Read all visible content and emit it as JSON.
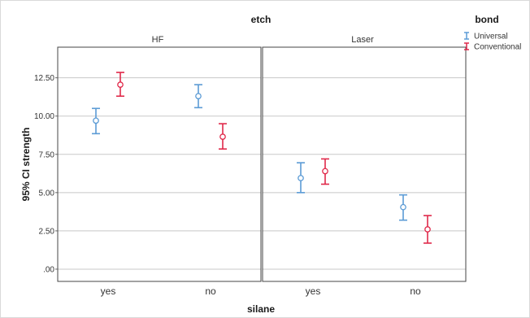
{
  "chart_data": {
    "type": "scatter",
    "subtype": "error-bar",
    "title": "etch",
    "xlabel": "silane",
    "ylabel": "95% CI strength",
    "panels": [
      "HF",
      "Laser"
    ],
    "categories": [
      "yes",
      "no"
    ],
    "ylim": [
      -0.8,
      14.5
    ],
    "yticks": [
      ".00",
      "2.50",
      "5.00",
      "7.50",
      "10.00",
      "12.50"
    ],
    "grid": true,
    "legend": {
      "title": "bond",
      "position": "top-right",
      "entries": [
        "Universal",
        "Conventional"
      ]
    },
    "series": [
      {
        "name": "Universal",
        "color": "#5b9bd5",
        "points": [
          {
            "panel": "HF",
            "x": "yes",
            "mean": 9.7,
            "lower": 8.85,
            "upper": 10.5
          },
          {
            "panel": "HF",
            "x": "no",
            "mean": 11.3,
            "lower": 10.55,
            "upper": 12.05
          },
          {
            "panel": "Laser",
            "x": "yes",
            "mean": 5.95,
            "lower": 5.0,
            "upper": 6.95
          },
          {
            "panel": "Laser",
            "x": "no",
            "mean": 4.05,
            "lower": 3.2,
            "upper": 4.85
          }
        ]
      },
      {
        "name": "Conventional",
        "color": "#e0294a",
        "points": [
          {
            "panel": "HF",
            "x": "yes",
            "mean": 12.05,
            "lower": 11.3,
            "upper": 12.85
          },
          {
            "panel": "HF",
            "x": "no",
            "mean": 8.65,
            "lower": 7.85,
            "upper": 9.5
          },
          {
            "panel": "Laser",
            "x": "yes",
            "mean": 6.4,
            "lower": 5.55,
            "upper": 7.2
          },
          {
            "panel": "Laser",
            "x": "no",
            "mean": 2.6,
            "lower": 1.7,
            "upper": 3.5
          }
        ]
      }
    ]
  }
}
